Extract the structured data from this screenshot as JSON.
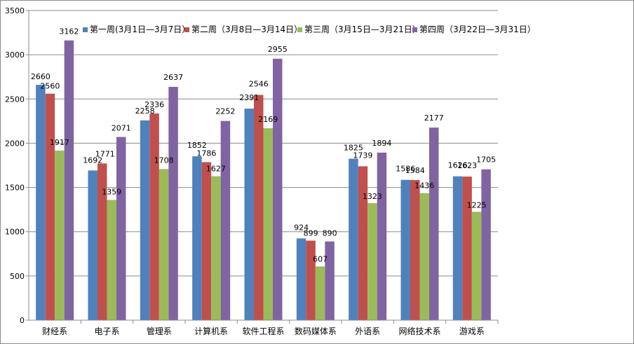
{
  "chart_data": {
    "type": "bar",
    "title": "",
    "xlabel": "",
    "ylabel": "",
    "ylim": [
      0,
      3500
    ],
    "yticks": [
      0,
      500,
      1000,
      1500,
      2000,
      2500,
      3000,
      3500
    ],
    "grid": true,
    "legend_position": "top",
    "categories": [
      "财经系",
      "电子系",
      "管理系",
      "计算机系",
      "软件工程系",
      "数码媒体系",
      "外语系",
      "网络技术系",
      "游戏系"
    ],
    "series": [
      {
        "name": "第一周(3月1日—3月7日）",
        "color": "#4f81bd",
        "values": [
          2660,
          1692,
          2258,
          1852,
          2391,
          924,
          1825,
          1586,
          1626
        ]
      },
      {
        "name": "第二周（3月8日—3月14日）",
        "color": "#c0504d",
        "values": [
          2560,
          1771,
          2336,
          1786,
          2546,
          899,
          1739,
          1584,
          1623
        ]
      },
      {
        "name": "第三周（3月15日—3月21日）",
        "color": "#9bbb59",
        "values": [
          1917,
          1359,
          1708,
          1627,
          2169,
          607,
          1323,
          1436,
          1225
        ]
      },
      {
        "name": "第四周（3月22日—3月31日）",
        "color": "#8064a2",
        "values": [
          3162,
          2071,
          2637,
          2252,
          2955,
          890,
          1894,
          2177,
          1705
        ]
      }
    ]
  }
}
